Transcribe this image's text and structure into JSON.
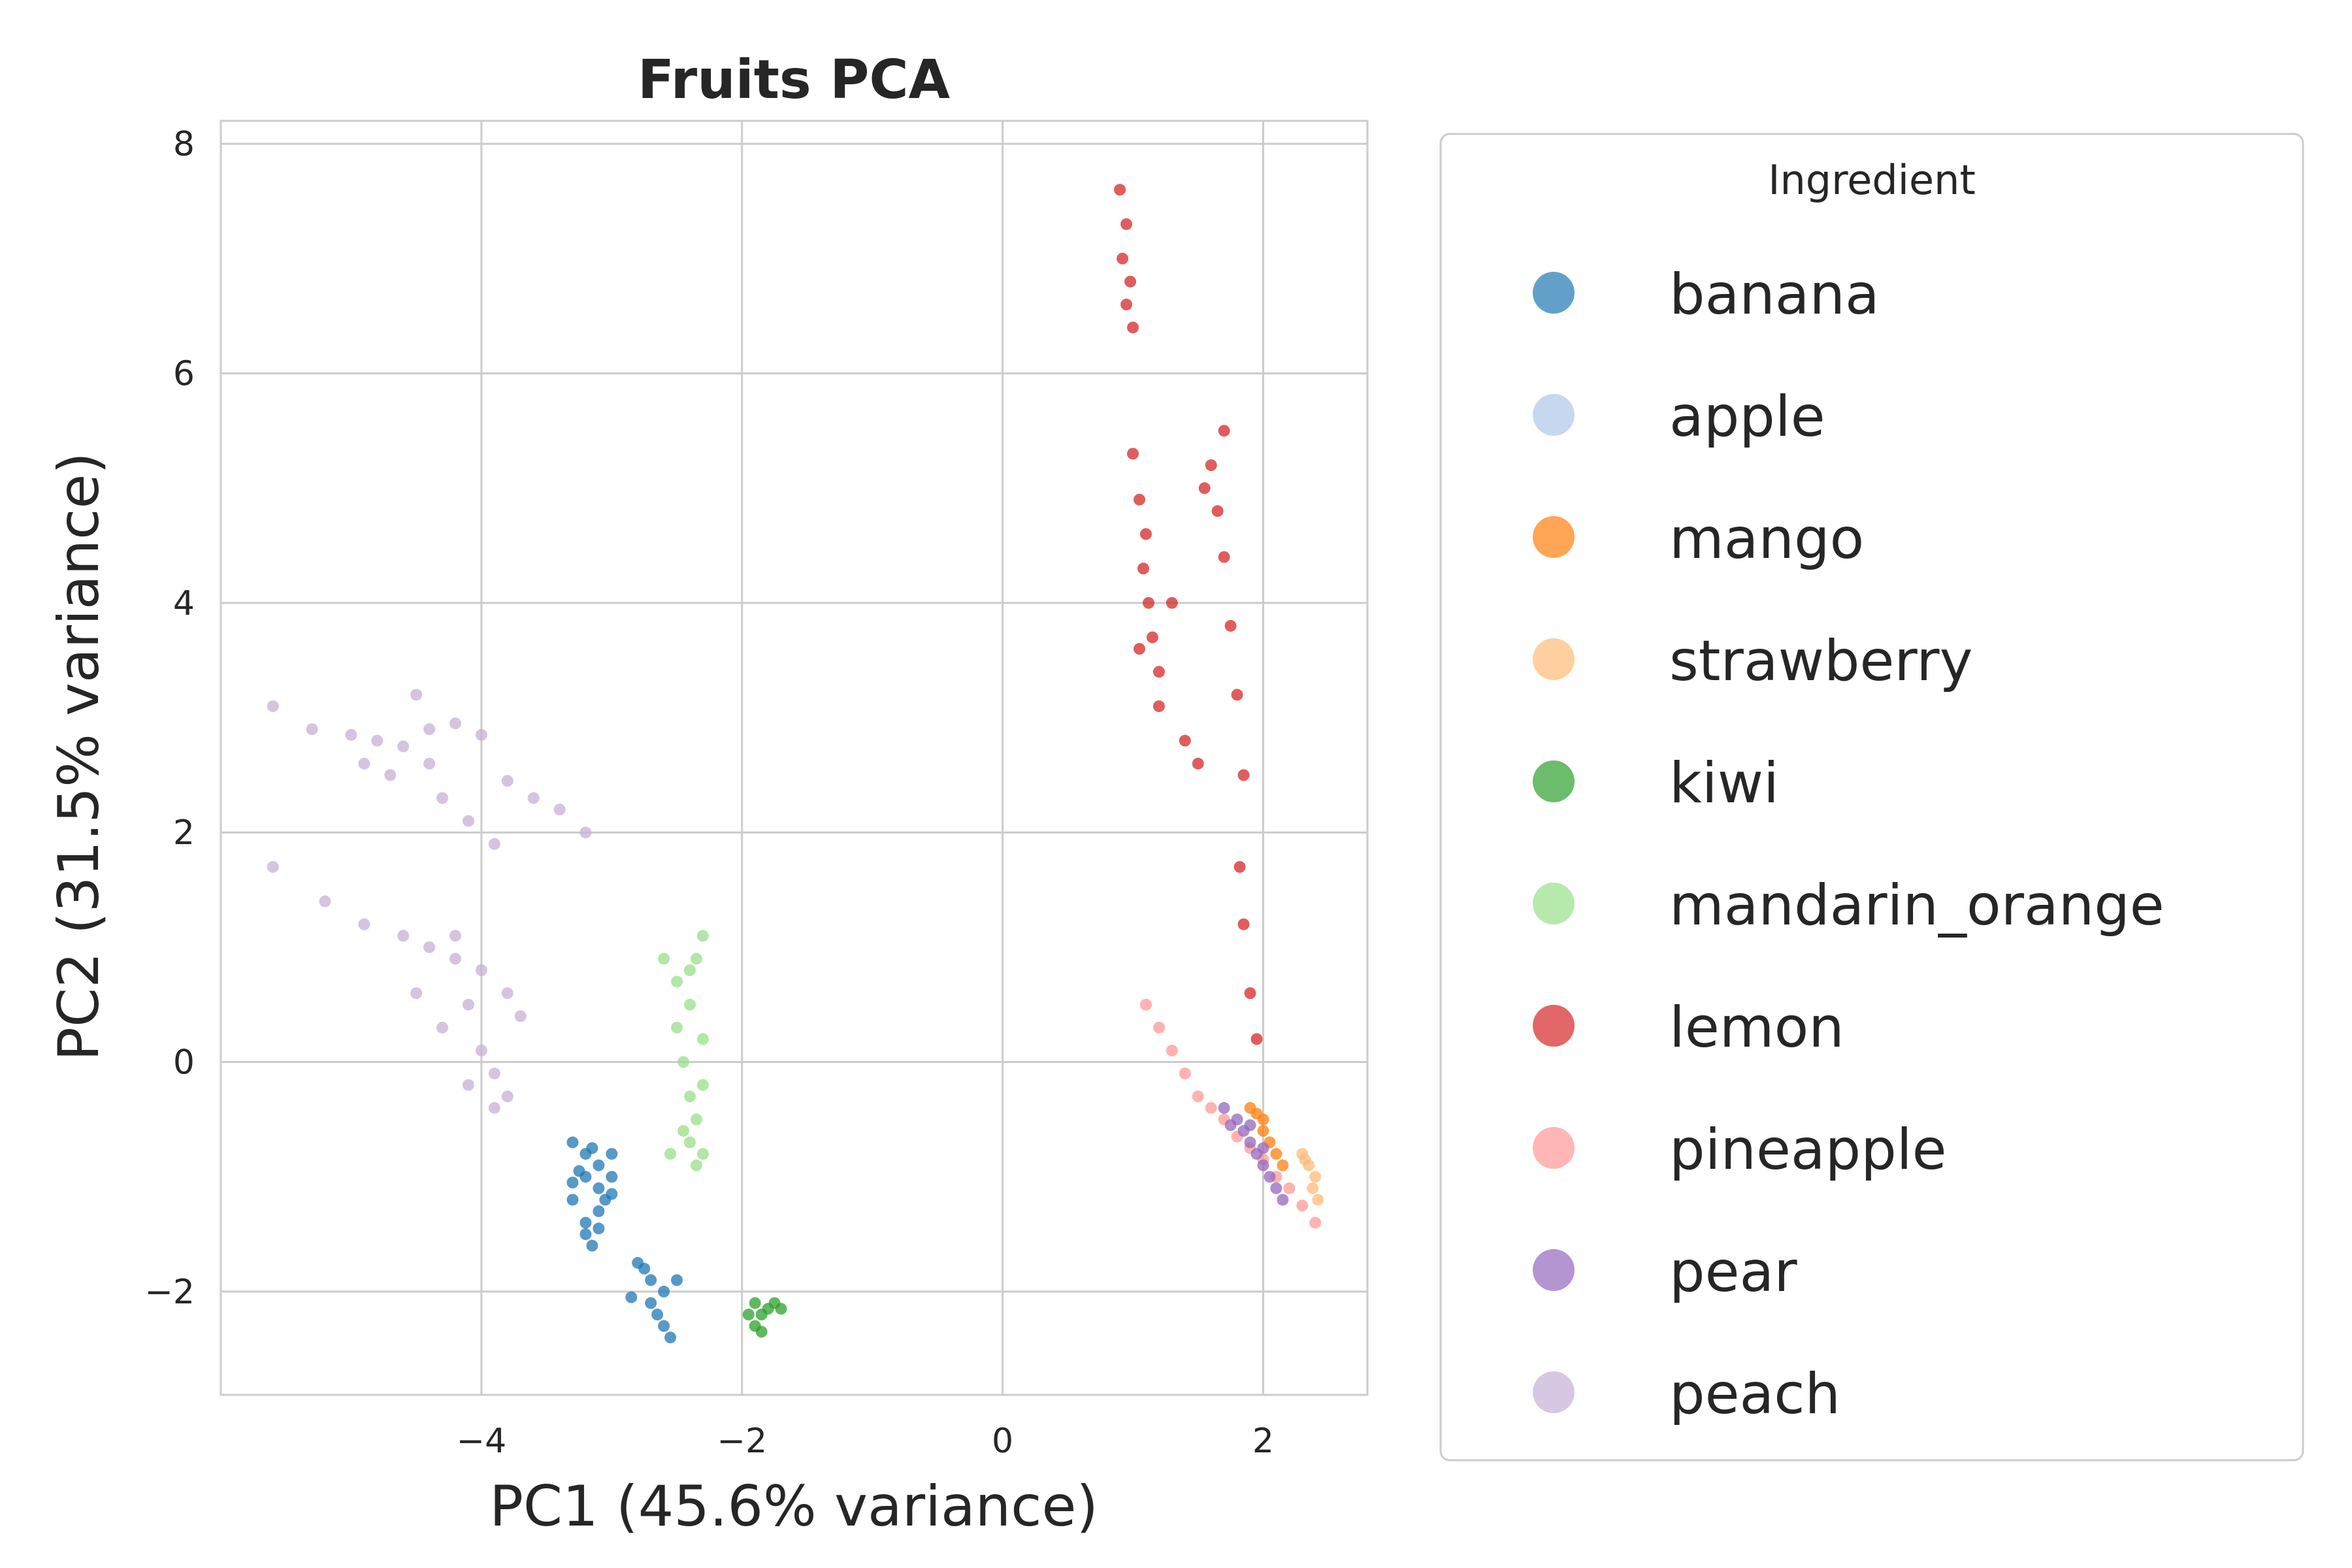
{
  "chart_data": {
    "type": "scatter",
    "title": "Fruits PCA",
    "xlabel": "PC1 (45.6% variance)",
    "ylabel": "PC2 (31.5% variance)",
    "xlim": [
      -6.0,
      2.8
    ],
    "ylim": [
      -2.9,
      8.2
    ],
    "xticks": [
      -4,
      -2,
      0,
      2
    ],
    "yticks": [
      -2,
      0,
      2,
      4,
      6,
      8
    ],
    "xtick_labels": [
      "−4",
      "−2",
      "0",
      "2"
    ],
    "ytick_labels": [
      "−2",
      "0",
      "2",
      "4",
      "6",
      "8"
    ],
    "grid": true,
    "legend": {
      "title": "Ingredient",
      "placement": "outside-right"
    },
    "series": [
      {
        "name": "banana",
        "color": "#1f77b4",
        "points": [
          [
            -3.3,
            -0.7
          ],
          [
            -3.2,
            -0.8
          ],
          [
            -3.1,
            -0.9
          ],
          [
            -3.0,
            -0.8
          ],
          [
            -3.2,
            -1.0
          ],
          [
            -3.1,
            -1.1
          ],
          [
            -3.3,
            -1.2
          ],
          [
            -3.0,
            -1.0
          ],
          [
            -3.15,
            -0.75
          ],
          [
            -3.25,
            -0.95
          ],
          [
            -3.05,
            -1.2
          ],
          [
            -3.2,
            -1.4
          ],
          [
            -3.1,
            -1.3
          ],
          [
            -3.2,
            -1.5
          ],
          [
            -3.15,
            -1.6
          ],
          [
            -3.1,
            -1.45
          ],
          [
            -3.0,
            -1.15
          ],
          [
            -3.3,
            -1.05
          ],
          [
            -2.8,
            -1.75
          ],
          [
            -2.7,
            -1.9
          ],
          [
            -2.6,
            -2.0
          ],
          [
            -2.7,
            -2.1
          ],
          [
            -2.65,
            -2.2
          ],
          [
            -2.6,
            -2.3
          ],
          [
            -2.55,
            -2.4
          ],
          [
            -2.85,
            -2.05
          ],
          [
            -2.5,
            -1.9
          ],
          [
            -2.75,
            -1.8
          ]
        ]
      },
      {
        "name": "apple",
        "color": "#aec7e8",
        "points": []
      },
      {
        "name": "mango",
        "color": "#ff7f0e",
        "points": [
          [
            1.9,
            -0.4
          ],
          [
            2.0,
            -0.5
          ],
          [
            2.05,
            -0.7
          ],
          [
            2.1,
            -0.8
          ],
          [
            2.0,
            -0.6
          ],
          [
            2.15,
            -0.9
          ],
          [
            1.95,
            -0.45
          ]
        ]
      },
      {
        "name": "strawberry",
        "color": "#ffbb78",
        "points": [
          [
            2.3,
            -0.8
          ],
          [
            2.35,
            -0.9
          ],
          [
            2.4,
            -1.0
          ],
          [
            2.38,
            -1.1
          ],
          [
            2.32,
            -0.85
          ],
          [
            2.42,
            -1.2
          ]
        ]
      },
      {
        "name": "kiwi",
        "color": "#2ca02c",
        "points": [
          [
            -1.9,
            -2.1
          ],
          [
            -1.85,
            -2.2
          ],
          [
            -1.8,
            -2.15
          ],
          [
            -1.75,
            -2.1
          ],
          [
            -1.9,
            -2.3
          ],
          [
            -1.85,
            -2.35
          ],
          [
            -1.7,
            -2.15
          ],
          [
            -1.95,
            -2.2
          ]
        ]
      },
      {
        "name": "mandarin_orange",
        "color": "#98df8a",
        "points": [
          [
            -2.4,
            0.8
          ],
          [
            -2.3,
            1.1
          ],
          [
            -2.35,
            0.9
          ],
          [
            -2.4,
            0.5
          ],
          [
            -2.5,
            0.3
          ],
          [
            -2.45,
            0.0
          ],
          [
            -2.4,
            -0.3
          ],
          [
            -2.35,
            -0.5
          ],
          [
            -2.4,
            -0.7
          ],
          [
            -2.35,
            -0.9
          ],
          [
            -2.3,
            -0.8
          ],
          [
            -2.5,
            0.7
          ],
          [
            -2.3,
            0.2
          ],
          [
            -2.3,
            -0.2
          ],
          [
            -2.6,
            0.9
          ],
          [
            -2.55,
            -0.8
          ],
          [
            -2.45,
            -0.6
          ]
        ]
      },
      {
        "name": "lemon",
        "color": "#d62728",
        "points": [
          [
            0.9,
            7.6
          ],
          [
            0.95,
            7.3
          ],
          [
            0.92,
            7.0
          ],
          [
            0.98,
            6.8
          ],
          [
            0.95,
            6.6
          ],
          [
            1.0,
            6.4
          ],
          [
            1.0,
            5.3
          ],
          [
            1.05,
            4.9
          ],
          [
            1.1,
            4.6
          ],
          [
            1.08,
            4.3
          ],
          [
            1.12,
            4.0
          ],
          [
            1.15,
            3.7
          ],
          [
            1.2,
            3.4
          ],
          [
            1.2,
            3.1
          ],
          [
            1.05,
            3.6
          ],
          [
            1.3,
            4.0
          ],
          [
            1.6,
            5.2
          ],
          [
            1.55,
            5.0
          ],
          [
            1.65,
            4.8
          ],
          [
            1.7,
            4.4
          ],
          [
            1.75,
            3.8
          ],
          [
            1.8,
            3.2
          ],
          [
            1.85,
            2.5
          ],
          [
            1.82,
            1.7
          ],
          [
            1.85,
            1.2
          ],
          [
            1.9,
            0.6
          ],
          [
            1.95,
            0.2
          ],
          [
            1.4,
            2.8
          ],
          [
            1.5,
            2.6
          ],
          [
            1.7,
            5.5
          ]
        ]
      },
      {
        "name": "pineapple",
        "color": "#ff9896",
        "points": [
          [
            1.1,
            0.5
          ],
          [
            1.2,
            0.3
          ],
          [
            1.3,
            0.1
          ],
          [
            1.4,
            -0.1
          ],
          [
            1.5,
            -0.3
          ],
          [
            1.6,
            -0.4
          ],
          [
            1.7,
            -0.5
          ],
          [
            1.8,
            -0.65
          ],
          [
            1.9,
            -0.75
          ],
          [
            2.0,
            -0.85
          ],
          [
            2.1,
            -1.0
          ],
          [
            2.2,
            -1.1
          ],
          [
            2.3,
            -1.25
          ],
          [
            2.4,
            -1.4
          ]
        ]
      },
      {
        "name": "pear",
        "color": "#9467bd",
        "points": [
          [
            1.7,
            -0.4
          ],
          [
            1.8,
            -0.5
          ],
          [
            1.85,
            -0.6
          ],
          [
            1.9,
            -0.7
          ],
          [
            1.95,
            -0.8
          ],
          [
            2.0,
            -0.9
          ],
          [
            2.05,
            -1.0
          ],
          [
            2.1,
            -1.1
          ],
          [
            1.9,
            -0.55
          ],
          [
            2.0,
            -0.75
          ],
          [
            1.75,
            -0.55
          ],
          [
            2.15,
            -1.2
          ]
        ]
      },
      {
        "name": "peach",
        "color": "#c5b0d5",
        "points": [
          [
            -5.6,
            3.1
          ],
          [
            -5.3,
            2.9
          ],
          [
            -5.0,
            2.85
          ],
          [
            -4.8,
            2.8
          ],
          [
            -4.6,
            2.75
          ],
          [
            -4.4,
            2.9
          ],
          [
            -4.2,
            2.95
          ],
          [
            -4.0,
            2.85
          ],
          [
            -4.5,
            3.2
          ],
          [
            -4.4,
            2.6
          ],
          [
            -4.7,
            2.5
          ],
          [
            -4.3,
            2.3
          ],
          [
            -4.1,
            2.1
          ],
          [
            -3.9,
            1.9
          ],
          [
            -3.6,
            2.3
          ],
          [
            -3.4,
            2.2
          ],
          [
            -3.2,
            2.0
          ],
          [
            -3.8,
            2.45
          ],
          [
            -4.9,
            2.6
          ],
          [
            -5.6,
            1.7
          ],
          [
            -5.2,
            1.4
          ],
          [
            -4.9,
            1.2
          ],
          [
            -4.6,
            1.1
          ],
          [
            -4.4,
            1.0
          ],
          [
            -4.2,
            0.9
          ],
          [
            -4.0,
            0.8
          ],
          [
            -3.8,
            0.6
          ],
          [
            -3.7,
            0.4
          ],
          [
            -4.1,
            0.5
          ],
          [
            -4.3,
            0.3
          ],
          [
            -4.0,
            0.1
          ],
          [
            -3.9,
            -0.1
          ],
          [
            -4.1,
            -0.2
          ],
          [
            -3.8,
            -0.3
          ],
          [
            -3.9,
            -0.4
          ],
          [
            -4.5,
            0.6
          ],
          [
            -4.2,
            1.1
          ]
        ]
      }
    ]
  }
}
